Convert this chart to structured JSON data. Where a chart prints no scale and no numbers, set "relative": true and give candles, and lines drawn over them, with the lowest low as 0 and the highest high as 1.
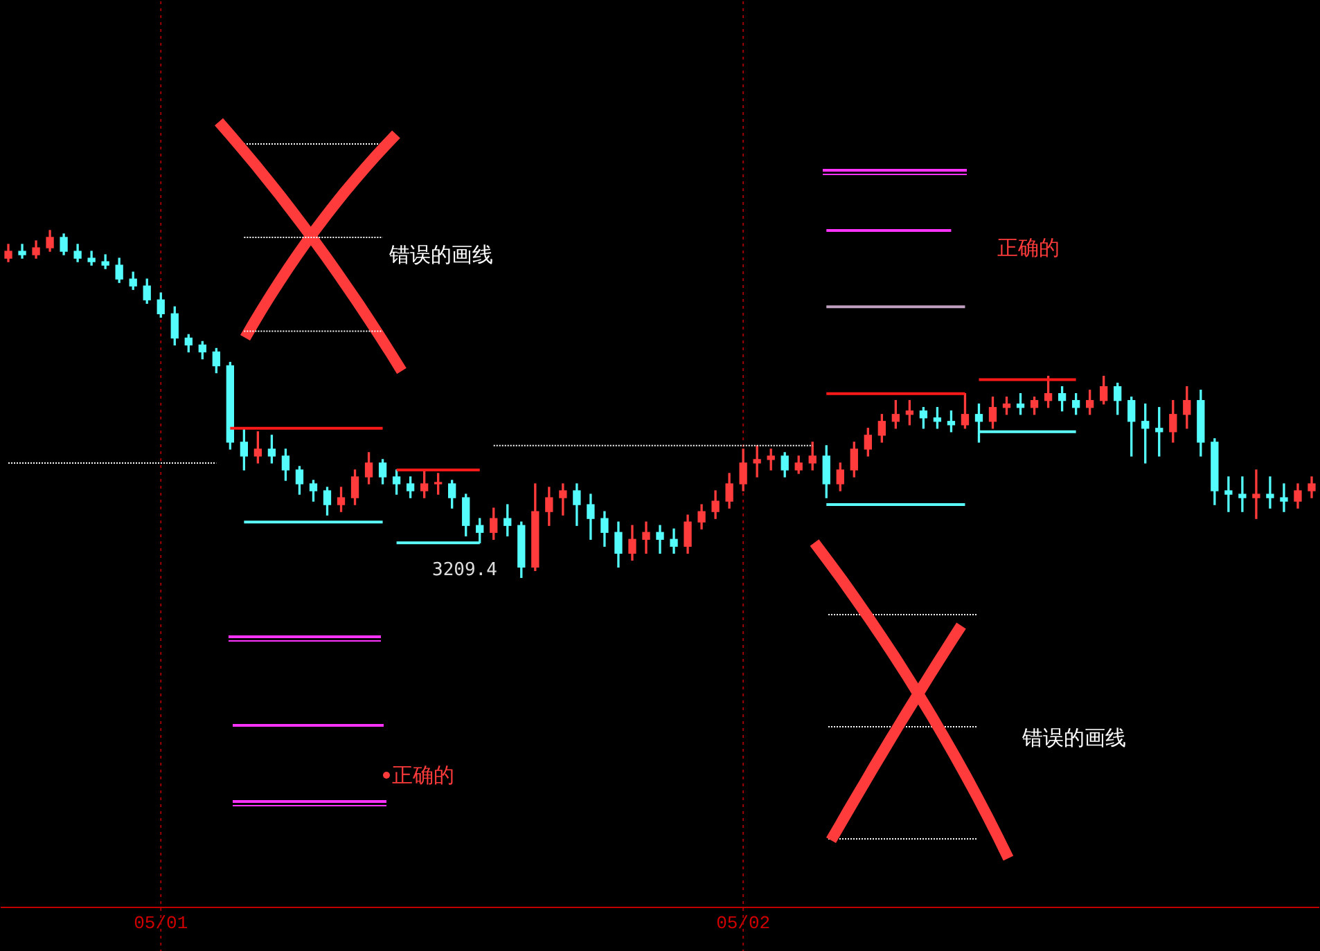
{
  "chart_data": {
    "type": "candlestick",
    "relative": true,
    "grid": "x",
    "colors": [
      "#ff3b3b",
      "#54fcfc",
      "#ff3b3b",
      "#ff3b3b",
      "#54fcfc",
      "#54fcfc",
      "#54fcfc",
      "#54fcfc",
      "#54fcfc",
      "#54fcfc",
      "#54fcfc",
      "#54fcfc",
      "#54fcfc",
      "#54fcfc",
      "#54fcfc",
      "#54fcfc",
      "#54fcfc",
      "#54fcfc",
      "#ff3b3b",
      "#54fcfc",
      "#54fcfc",
      "#54fcfc",
      "#54fcfc",
      "#54fcfc",
      "#ff3b3b",
      "#ff3b3b",
      "#ff3b3b",
      "#54fcfc",
      "#54fcfc",
      "#54fcfc",
      "#ff3b3b",
      "#ff3b3b",
      "#54fcfc",
      "#54fcfc",
      "#54fcfc",
      "#ff3b3b",
      "#54fcfc",
      "#54fcfc",
      "#ff3b3b",
      "#ff3b3b",
      "#ff3b3b",
      "#54fcfc",
      "#54fcfc",
      "#54fcfc",
      "#54fcfc",
      "#ff3b3b",
      "#ff3b3b",
      "#54fcfc",
      "#54fcfc",
      "#ff3b3b",
      "#ff3b3b",
      "#ff3b3b",
      "#ff3b3b",
      "#ff3b3b",
      "#ff3b3b",
      "#ff3b3b",
      "#54fcfc",
      "#ff3b3b",
      "#ff3b3b",
      "#54fcfc",
      "#ff3b3b",
      "#ff3b3b",
      "#ff3b3b",
      "#ff3b3b",
      "#ff3b3b",
      "#ff3b3b",
      "#54fcfc",
      "#54fcfc",
      "#54fcfc",
      "#ff3b3b",
      "#54fcfc",
      "#ff3b3b",
      "#ff3b3b",
      "#54fcfc",
      "#ff3b3b",
      "#ff3b3b",
      "#54fcfc",
      "#54fcfc",
      "#ff3b3b",
      "#ff3b3b",
      "#54fcfc",
      "#54fcfc",
      "#54fcfc",
      "#54fcfc",
      "#ff3b3b",
      "#ff3b3b",
      "#54fcfc",
      "#54fcfc",
      "#54fcfc",
      "#54fcfc",
      "#ff3b3b",
      "#54fcfc",
      "#54fcfc",
      "#ff3b3b",
      "#ff3b3b"
    ],
    "categories": [
      null,
      null,
      null,
      null,
      null,
      null,
      null,
      null,
      null,
      null,
      null,
      "05/01",
      null,
      null,
      null,
      null,
      null,
      null,
      null,
      null,
      null,
      null,
      null,
      null,
      null,
      null,
      null,
      null,
      null,
      null,
      null,
      null,
      null,
      null,
      null,
      null,
      null,
      null,
      null,
      null,
      null,
      null,
      null,
      null,
      null,
      null,
      null,
      null,
      null,
      null,
      null,
      null,
      null,
      "05/02",
      null,
      null,
      null,
      null,
      null,
      null,
      null,
      null,
      null,
      null,
      null,
      null,
      null,
      null,
      null,
      null,
      null,
      null,
      null,
      null,
      null,
      null,
      null,
      null,
      null,
      null,
      null,
      null,
      null,
      null,
      null,
      null,
      null,
      null,
      null,
      null,
      null,
      null,
      null,
      null,
      null
    ],
    "ohlc": [
      [
        0.92,
        0.96,
        0.91,
        0.94
      ],
      [
        0.94,
        0.96,
        0.92,
        0.93
      ],
      [
        0.93,
        0.97,
        0.92,
        0.95
      ],
      [
        0.95,
        1.0,
        0.94,
        0.98
      ],
      [
        0.98,
        0.99,
        0.93,
        0.94
      ],
      [
        0.94,
        0.96,
        0.91,
        0.92
      ],
      [
        0.92,
        0.94,
        0.9,
        0.91
      ],
      [
        0.91,
        0.93,
        0.89,
        0.9
      ],
      [
        0.9,
        0.92,
        0.85,
        0.86
      ],
      [
        0.86,
        0.88,
        0.83,
        0.84
      ],
      [
        0.84,
        0.86,
        0.79,
        0.8
      ],
      [
        0.8,
        0.82,
        0.75,
        0.76
      ],
      [
        0.76,
        0.78,
        0.67,
        0.69
      ],
      [
        0.69,
        0.7,
        0.65,
        0.67
      ],
      [
        0.67,
        0.68,
        0.63,
        0.65
      ],
      [
        0.65,
        0.66,
        0.59,
        0.61
      ],
      [
        0.61,
        0.62,
        0.37,
        0.39
      ],
      [
        0.39,
        0.43,
        0.31,
        0.35
      ],
      [
        0.35,
        0.42,
        0.33,
        0.37
      ],
      [
        0.37,
        0.41,
        0.33,
        0.35
      ],
      [
        0.35,
        0.37,
        0.28,
        0.31
      ],
      [
        0.31,
        0.32,
        0.24,
        0.27
      ],
      [
        0.27,
        0.28,
        0.22,
        0.25
      ],
      [
        0.25,
        0.26,
        0.18,
        0.21
      ],
      [
        0.21,
        0.26,
        0.19,
        0.23
      ],
      [
        0.23,
        0.31,
        0.21,
        0.29
      ],
      [
        0.29,
        0.36,
        0.27,
        0.33
      ],
      [
        0.33,
        0.34,
        0.27,
        0.29
      ],
      [
        0.29,
        0.31,
        0.24,
        0.27
      ],
      [
        0.27,
        0.29,
        0.23,
        0.25
      ],
      [
        0.25,
        0.31,
        0.23,
        0.27
      ],
      [
        0.27,
        0.3,
        0.24,
        0.27
      ],
      [
        0.27,
        0.28,
        0.2,
        0.23
      ],
      [
        0.23,
        0.24,
        0.12,
        0.15
      ],
      [
        0.15,
        0.17,
        0.1,
        0.13
      ],
      [
        0.13,
        0.2,
        0.11,
        0.17
      ],
      [
        0.17,
        0.21,
        0.12,
        0.15
      ],
      [
        0.15,
        0.16,
        0.0,
        0.03
      ],
      [
        0.03,
        0.27,
        0.02,
        0.19
      ],
      [
        0.19,
        0.26,
        0.15,
        0.23
      ],
      [
        0.23,
        0.27,
        0.18,
        0.25
      ],
      [
        0.25,
        0.27,
        0.15,
        0.21
      ],
      [
        0.21,
        0.24,
        0.11,
        0.17
      ],
      [
        0.17,
        0.19,
        0.09,
        0.13
      ],
      [
        0.13,
        0.16,
        0.03,
        0.07
      ],
      [
        0.07,
        0.15,
        0.05,
        0.11
      ],
      [
        0.11,
        0.16,
        0.07,
        0.13
      ],
      [
        0.13,
        0.15,
        0.07,
        0.11
      ],
      [
        0.11,
        0.14,
        0.07,
        0.09
      ],
      [
        0.09,
        0.18,
        0.07,
        0.16
      ],
      [
        0.16,
        0.21,
        0.14,
        0.19
      ],
      [
        0.19,
        0.25,
        0.17,
        0.22
      ],
      [
        0.22,
        0.3,
        0.2,
        0.27
      ],
      [
        0.27,
        0.37,
        0.25,
        0.33
      ],
      [
        0.33,
        0.38,
        0.29,
        0.34
      ],
      [
        0.34,
        0.37,
        0.31,
        0.35
      ],
      [
        0.35,
        0.36,
        0.29,
        0.31
      ],
      [
        0.31,
        0.35,
        0.3,
        0.33
      ],
      [
        0.33,
        0.39,
        0.31,
        0.35
      ],
      [
        0.35,
        0.38,
        0.23,
        0.27
      ],
      [
        0.27,
        0.33,
        0.25,
        0.31
      ],
      [
        0.31,
        0.39,
        0.29,
        0.37
      ],
      [
        0.37,
        0.43,
        0.35,
        0.41
      ],
      [
        0.41,
        0.47,
        0.39,
        0.45
      ],
      [
        0.45,
        0.51,
        0.43,
        0.47
      ],
      [
        0.47,
        0.51,
        0.44,
        0.48
      ],
      [
        0.48,
        0.49,
        0.43,
        0.46
      ],
      [
        0.46,
        0.49,
        0.43,
        0.45
      ],
      [
        0.45,
        0.48,
        0.42,
        0.44
      ],
      [
        0.44,
        0.53,
        0.43,
        0.47
      ],
      [
        0.47,
        0.5,
        0.39,
        0.45
      ],
      [
        0.45,
        0.52,
        0.43,
        0.49
      ],
      [
        0.49,
        0.52,
        0.47,
        0.5
      ],
      [
        0.5,
        0.53,
        0.47,
        0.49
      ],
      [
        0.49,
        0.52,
        0.47,
        0.51
      ],
      [
        0.51,
        0.58,
        0.49,
        0.53
      ],
      [
        0.53,
        0.55,
        0.48,
        0.51
      ],
      [
        0.51,
        0.53,
        0.47,
        0.49
      ],
      [
        0.49,
        0.54,
        0.47,
        0.51
      ],
      [
        0.51,
        0.58,
        0.5,
        0.55
      ],
      [
        0.55,
        0.56,
        0.47,
        0.51
      ],
      [
        0.51,
        0.52,
        0.35,
        0.45
      ],
      [
        0.45,
        0.5,
        0.33,
        0.43
      ],
      [
        0.43,
        0.49,
        0.35,
        0.42
      ],
      [
        0.42,
        0.51,
        0.39,
        0.47
      ],
      [
        0.47,
        0.55,
        0.43,
        0.51
      ],
      [
        0.51,
        0.54,
        0.35,
        0.39
      ],
      [
        0.39,
        0.4,
        0.21,
        0.25
      ],
      [
        0.25,
        0.29,
        0.19,
        0.24
      ],
      [
        0.24,
        0.29,
        0.19,
        0.23
      ],
      [
        0.23,
        0.31,
        0.17,
        0.24
      ],
      [
        0.24,
        0.29,
        0.2,
        0.23
      ],
      [
        0.23,
        0.27,
        0.19,
        0.22
      ],
      [
        0.22,
        0.27,
        0.2,
        0.25
      ],
      [
        0.25,
        0.29,
        0.23,
        0.27
      ]
    ],
    "series": [
      {
        "type": "line",
        "line_style": "dotted",
        "color": "#ffffff",
        "values": [
          null,
          null,
          null,
          null,
          null,
          null,
          null,
          null,
          null,
          null,
          null,
          null,
          null,
          null,
          null,
          null,
          null,
          0.98,
          0.98,
          0.98,
          0.98,
          0.98,
          0.98,
          0.98,
          0.98,
          0.98,
          0.98,
          0.98,
          null,
          null,
          null,
          null,
          null,
          null,
          null,
          null,
          null,
          null,
          null,
          null,
          null,
          null,
          null,
          null,
          null,
          null,
          null,
          null,
          null,
          null,
          null,
          null,
          null,
          null,
          null,
          null,
          null,
          null,
          null,
          null,
          null,
          null,
          null,
          null,
          null,
          null,
          null,
          null,
          null,
          null,
          null,
          null,
          null,
          null,
          null,
          null,
          null,
          null,
          null,
          null,
          null,
          null,
          null,
          null,
          null,
          null,
          null,
          null,
          null,
          null,
          null,
          null,
          null,
          null,
          null
        ]
      },
      {
        "type": "line",
        "line_style": "dotted",
        "color": "#ffffff",
        "values": [
          null,
          null,
          null,
          null,
          null,
          null,
          null,
          null,
          null,
          null,
          null,
          null,
          null,
          null,
          null,
          null,
          null,
          0.71,
          0.71,
          0.71,
          0.71,
          0.71,
          0.71,
          0.71,
          0.71,
          0.71,
          0.71,
          0.71,
          null,
          null,
          null,
          null,
          null,
          null,
          null,
          null,
          null,
          null,
          null,
          null,
          null,
          null,
          null,
          null,
          null,
          null,
          null,
          null,
          null,
          null,
          null,
          null,
          null,
          null,
          null,
          null,
          null,
          null,
          null,
          null,
          null,
          null,
          null,
          null,
          null,
          null,
          null,
          null,
          null,
          null,
          null,
          null,
          null,
          null,
          null,
          null,
          null,
          null,
          null,
          null,
          null,
          null,
          null,
          null,
          null,
          null,
          null,
          null,
          null,
          null,
          null,
          null,
          null,
          null,
          null
        ]
      },
      {
        "type": "line",
        "line_style": "solid",
        "color": "#ff1a1a",
        "values": [
          null,
          null,
          null,
          null,
          null,
          null,
          null,
          null,
          null,
          null,
          null,
          null,
          null,
          null,
          null,
          null,
          0.43,
          0.43,
          0.43,
          0.43,
          0.43,
          0.43,
          0.43,
          0.43,
          0.43,
          0.43,
          0.43,
          0.43,
          null,
          null,
          null,
          null,
          null,
          null,
          null,
          null,
          null,
          null,
          null,
          null,
          null,
          null,
          null,
          null,
          null,
          null,
          null,
          null,
          null,
          null,
          null,
          null,
          null,
          null,
          null,
          null,
          null,
          null,
          null,
          null,
          null,
          null,
          null,
          null,
          null,
          null,
          null,
          null,
          null,
          null,
          null,
          null,
          null,
          null,
          null,
          null,
          null,
          null,
          null,
          null,
          null,
          null,
          null,
          null,
          null,
          null,
          null,
          null,
          null,
          null,
          null,
          null,
          null,
          null,
          null
        ]
      },
      {
        "type": "line",
        "line_style": "solid",
        "color": "#ff1a1a",
        "values": [
          null,
          null,
          null,
          null,
          null,
          null,
          null,
          null,
          null,
          null,
          null,
          null,
          null,
          null,
          null,
          null,
          null,
          null,
          null,
          null,
          null,
          null,
          null,
          null,
          null,
          null,
          null,
          null,
          0.31,
          0.31,
          0.31,
          0.31,
          0.31,
          0.31,
          0.31,
          null,
          null,
          null,
          null,
          null,
          null,
          null,
          null,
          null,
          null,
          null,
          null,
          null,
          null,
          null,
          null,
          null,
          null,
          null,
          null,
          null,
          null,
          null,
          null,
          null,
          null,
          null,
          null,
          null,
          null,
          null,
          null,
          null,
          null,
          null,
          null,
          null,
          null,
          null,
          null,
          null,
          null,
          null,
          null,
          null,
          null,
          null,
          null,
          null,
          null,
          null,
          null,
          null,
          null,
          null,
          null,
          null,
          null,
          null,
          null
        ]
      },
      {
        "type": "line",
        "line_style": "solid",
        "color": "#5cffff",
        "values": [
          null,
          null,
          null,
          null,
          null,
          null,
          null,
          null,
          null,
          null,
          null,
          null,
          null,
          null,
          null,
          null,
          null,
          0.16,
          0.16,
          0.16,
          0.16,
          0.16,
          0.16,
          0.16,
          0.16,
          0.16,
          0.16,
          0.16,
          null,
          null,
          null,
          null,
          null,
          null,
          null,
          null,
          null,
          null,
          null,
          null,
          null,
          null,
          null,
          null,
          null,
          null,
          null,
          null,
          null,
          null,
          null,
          null,
          null,
          null,
          null,
          null,
          null,
          null,
          null,
          null,
          null,
          null,
          null,
          null,
          null,
          null,
          null,
          null,
          null,
          null,
          null,
          null,
          null,
          null,
          null,
          null,
          null,
          null,
          null,
          null,
          null,
          null,
          null,
          null,
          null,
          null,
          null,
          null,
          null,
          null,
          null,
          null,
          null,
          null,
          null
        ]
      },
      {
        "type": "line",
        "line_style": "solid",
        "color": "#5cffff",
        "values": [
          null,
          null,
          null,
          null,
          null,
          null,
          null,
          null,
          null,
          null,
          null,
          null,
          null,
          null,
          null,
          null,
          null,
          null,
          null,
          null,
          null,
          null,
          null,
          null,
          null,
          null,
          null,
          null,
          0.1,
          0.1,
          0.1,
          0.1,
          0.1,
          0.1,
          0.1,
          null,
          null,
          null,
          null,
          null,
          null,
          null,
          null,
          null,
          null,
          null,
          null,
          null,
          null,
          null,
          null,
          null,
          null,
          null,
          null,
          null,
          null,
          null,
          null,
          null,
          null,
          null,
          null,
          null,
          null,
          null,
          null,
          null,
          null,
          null,
          null,
          null,
          null,
          null,
          null,
          null,
          null,
          null,
          null,
          null,
          null,
          null,
          null,
          null,
          null,
          null,
          null,
          null,
          null,
          null,
          null,
          null,
          null,
          null,
          null
        ]
      },
      {
        "type": "line",
        "line_style": "dotted",
        "color": "#ffffff",
        "values": [
          0.33,
          0.33,
          0.33,
          0.33,
          0.33,
          0.33,
          0.33,
          0.33,
          0.33,
          0.33,
          0.33,
          0.33,
          0.33,
          0.33,
          0.33,
          0.33,
          null,
          null,
          null,
          null,
          null,
          null,
          null,
          null,
          null,
          null,
          null,
          null,
          null,
          null,
          null,
          null,
          null,
          null,
          null,
          null,
          null,
          null,
          null,
          null,
          null,
          null,
          null,
          null,
          null,
          null,
          null,
          null,
          null,
          null,
          null,
          null,
          null,
          null,
          null,
          null,
          null,
          null,
          null,
          null,
          null,
          null,
          null,
          null,
          null,
          null,
          null,
          null,
          null,
          null,
          null,
          null,
          null,
          null,
          null,
          null,
          null,
          null,
          null,
          null,
          null,
          null,
          null,
          null,
          null,
          null,
          null,
          null,
          null,
          null,
          null,
          null,
          null,
          null,
          null
        ]
      },
      {
        "type": "line",
        "line_style": "dotted",
        "color": "#ffffff",
        "values": [
          null,
          null,
          null,
          null,
          null,
          null,
          null,
          null,
          null,
          null,
          null,
          null,
          null,
          null,
          null,
          null,
          null,
          null,
          null,
          null,
          null,
          null,
          null,
          null,
          null,
          null,
          null,
          null,
          null,
          null,
          null,
          null,
          null,
          null,
          null,
          0.38,
          0.38,
          0.38,
          0.38,
          0.38,
          0.38,
          0.38,
          0.38,
          0.38,
          0.38,
          0.38,
          0.38,
          0.38,
          0.38,
          0.38,
          0.38,
          0.38,
          0.38,
          0.38,
          0.38,
          0.38,
          0.38,
          0.38,
          0.38,
          null,
          null,
          null,
          null,
          null,
          null,
          null,
          null,
          null,
          null,
          null,
          null,
          null,
          null,
          null,
          null,
          null,
          null,
          null,
          null,
          null,
          null,
          null,
          null,
          null,
          null,
          null,
          null,
          null,
          null,
          null,
          null,
          null,
          null,
          null,
          null
        ]
      },
      {
        "type": "line",
        "line_style": "solid",
        "color": "#ff33ff",
        "values": [
          null,
          null,
          null,
          null,
          null,
          null,
          null,
          null,
          null,
          null,
          null,
          null,
          null,
          null,
          null,
          null,
          null,
          null,
          null,
          null,
          null,
          null,
          null,
          null,
          null,
          null,
          null,
          null,
          null,
          null,
          null,
          null,
          null,
          null,
          null,
          null,
          null,
          null,
          null,
          null,
          null,
          null,
          null,
          null,
          null,
          null,
          null,
          null,
          null,
          null,
          null,
          null,
          null,
          null,
          null,
          null,
          null,
          null,
          null,
          1.0,
          1.0,
          1.0,
          1.0,
          1.0,
          1.0,
          1.0,
          1.0,
          1.0,
          1.0,
          null,
          null,
          null,
          null,
          null,
          null,
          null,
          null,
          null,
          null,
          null,
          null,
          null,
          null,
          null,
          null,
          null,
          null,
          null,
          null,
          null,
          null,
          null,
          null,
          null,
          null
        ]
      },
      {
        "type": "line",
        "line_style": "solid",
        "color": "#c0a0c0",
        "values": [
          null,
          null,
          null,
          null,
          null,
          null,
          null,
          null,
          null,
          null,
          null,
          null,
          null,
          null,
          null,
          null,
          null,
          null,
          null,
          null,
          null,
          null,
          null,
          null,
          null,
          null,
          null,
          null,
          null,
          null,
          null,
          null,
          null,
          null,
          null,
          null,
          null,
          null,
          null,
          null,
          null,
          null,
          null,
          null,
          null,
          null,
          null,
          null,
          null,
          null,
          null,
          null,
          null,
          null,
          null,
          null,
          null,
          null,
          null,
          0.78,
          0.78,
          0.78,
          0.78,
          0.78,
          0.78,
          0.78,
          0.78,
          0.78,
          0.78,
          0.78,
          null,
          null,
          null,
          null,
          null,
          null,
          null,
          null,
          null,
          null,
          null,
          null,
          null,
          null,
          null,
          null,
          null,
          null,
          null,
          null,
          null,
          null,
          null,
          null,
          null
        ]
      },
      {
        "type": "line",
        "line_style": "solid",
        "color": "#ff1a1a",
        "values": [
          null,
          null,
          null,
          null,
          null,
          null,
          null,
          null,
          null,
          null,
          null,
          null,
          null,
          null,
          null,
          null,
          null,
          null,
          null,
          null,
          null,
          null,
          null,
          null,
          null,
          null,
          null,
          null,
          null,
          null,
          null,
          null,
          null,
          null,
          null,
          null,
          null,
          null,
          null,
          null,
          null,
          null,
          null,
          null,
          null,
          null,
          null,
          null,
          null,
          null,
          null,
          null,
          null,
          null,
          null,
          null,
          null,
          null,
          null,
          0.53,
          0.53,
          0.53,
          0.53,
          0.53,
          0.53,
          0.53,
          0.53,
          0.53,
          0.53,
          0.53,
          null,
          null,
          null,
          null,
          null,
          null,
          null,
          null,
          null,
          null,
          null,
          null,
          null,
          null,
          null,
          null,
          null,
          null,
          null,
          null,
          null,
          null,
          null,
          null,
          null
        ]
      },
      {
        "type": "line",
        "line_style": "solid",
        "color": "#ff1a1a",
        "values": [
          null,
          null,
          null,
          null,
          null,
          null,
          null,
          null,
          null,
          null,
          null,
          null,
          null,
          null,
          null,
          null,
          null,
          null,
          null,
          null,
          null,
          null,
          null,
          null,
          null,
          null,
          null,
          null,
          null,
          null,
          null,
          null,
          null,
          null,
          null,
          null,
          null,
          null,
          null,
          null,
          null,
          null,
          null,
          null,
          null,
          null,
          null,
          null,
          null,
          null,
          null,
          null,
          null,
          null,
          null,
          null,
          null,
          null,
          null,
          null,
          null,
          null,
          null,
          null,
          null,
          null,
          null,
          null,
          null,
          null,
          0.57,
          0.57,
          0.57,
          0.57,
          0.57,
          0.57,
          0.57,
          0.57,
          null,
          null,
          null,
          null,
          null,
          null,
          null,
          null,
          null,
          null,
          null,
          null,
          null,
          null,
          null,
          null,
          null
        ]
      },
      {
        "type": "line",
        "line_style": "solid",
        "color": "#5cffff",
        "values": [
          null,
          null,
          null,
          null,
          null,
          null,
          null,
          null,
          null,
          null,
          null,
          null,
          null,
          null,
          null,
          null,
          null,
          null,
          null,
          null,
          null,
          null,
          null,
          null,
          null,
          null,
          null,
          null,
          null,
          null,
          null,
          null,
          null,
          null,
          null,
          null,
          null,
          null,
          null,
          null,
          null,
          null,
          null,
          null,
          null,
          null,
          null,
          null,
          null,
          null,
          null,
          null,
          null,
          null,
          null,
          null,
          null,
          null,
          null,
          0.21,
          0.21,
          0.21,
          0.21,
          0.21,
          0.21,
          0.21,
          0.21,
          0.21,
          0.21,
          0.21,
          null,
          null,
          null,
          null,
          null,
          null,
          null,
          null,
          null,
          null,
          null,
          null,
          null,
          null,
          null,
          null,
          null,
          null,
          null,
          null,
          null,
          null,
          null,
          null,
          null
        ]
      },
      {
        "type": "line",
        "line_style": "solid",
        "color": "#5cffff",
        "values": [
          null,
          null,
          null,
          null,
          null,
          null,
          null,
          null,
          null,
          null,
          null,
          null,
          null,
          null,
          null,
          null,
          null,
          null,
          null,
          null,
          null,
          null,
          null,
          null,
          null,
          null,
          null,
          null,
          null,
          null,
          null,
          null,
          null,
          null,
          null,
          null,
          null,
          null,
          null,
          null,
          null,
          null,
          null,
          null,
          null,
          null,
          null,
          null,
          null,
          null,
          null,
          null,
          null,
          null,
          null,
          null,
          null,
          null,
          null,
          null,
          null,
          null,
          null,
          null,
          null,
          null,
          null,
          null,
          null,
          null,
          0.42,
          0.42,
          0.42,
          0.42,
          0.42,
          0.42,
          0.42,
          0.42,
          null,
          null,
          null,
          null,
          null,
          null,
          null,
          null,
          null,
          null,
          null,
          null,
          null,
          null,
          null,
          null,
          null
        ]
      }
    ],
    "marker": "none",
    "annotations": [
      "错误的画线",
      "正确的",
      "错误的画线",
      "正确的",
      "3209.4"
    ]
  }
}
